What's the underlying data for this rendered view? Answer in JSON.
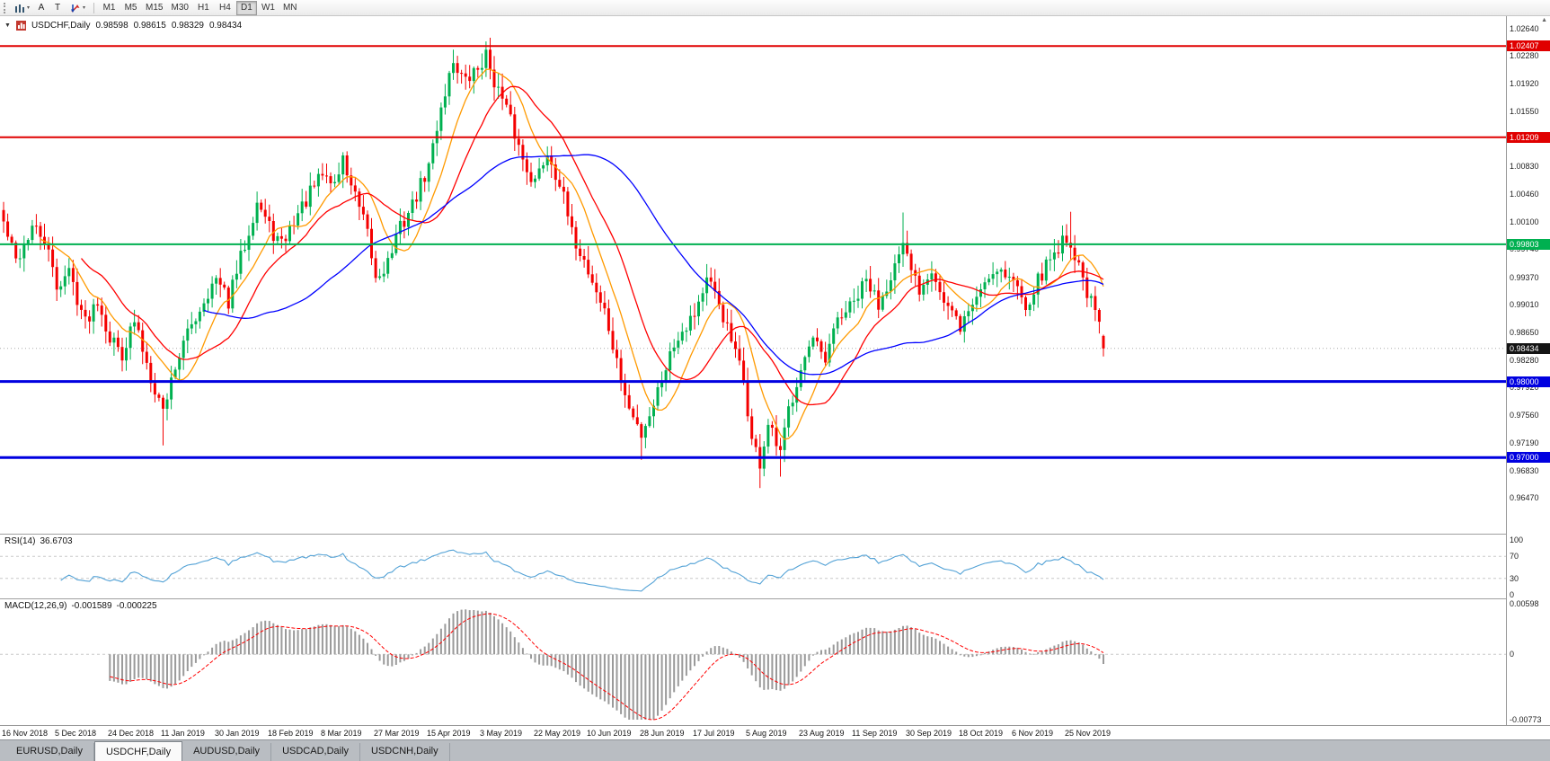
{
  "toolbar": {
    "tools": [
      {
        "name": "chart-type-icon",
        "glyph": "bars",
        "caret": true
      },
      {
        "name": "cursor-tool-icon",
        "glyph": "A",
        "caret": false
      },
      {
        "name": "text-tool-icon",
        "glyph": "T",
        "caret": false
      },
      {
        "name": "draw-arrows-icon",
        "glyph": "arrows",
        "caret": true
      }
    ],
    "timeframes": [
      "M1",
      "M5",
      "M15",
      "M30",
      "H1",
      "H4",
      "D1",
      "W1",
      "MN"
    ],
    "active_timeframe": "D1"
  },
  "chart": {
    "symbol": "USDCHF,Daily",
    "ohlc": {
      "open": "0.98598",
      "high": "0.98615",
      "low": "0.98329",
      "close": "0.98434"
    },
    "current_price_label": "0.98434"
  },
  "indicators": {
    "rsi": {
      "label": "RSI(14)",
      "value": "36.6703",
      "levels": [
        "100",
        "70",
        "30",
        "0"
      ],
      "line_color": "#53a2d6"
    },
    "macd": {
      "label": "MACD(12,26,9)",
      "main_value": "-0.001589",
      "signal_value": "-0.000225",
      "axis_labels": [
        "0.00598",
        "0",
        "-0.00773"
      ],
      "histogram_color": "#9a9a9a",
      "signal_color": "#ff0000"
    }
  },
  "chart_data": {
    "type": "candlestick",
    "symbol": "USDCHF",
    "timeframe": "Daily",
    "candle_count": 270,
    "seed": 42,
    "price_range": [
      0.96,
      1.028
    ],
    "up_color": "#00b050",
    "down_color": "#f40000",
    "price_axis_ticks": [
      "1.02640",
      "1.02280",
      "1.01920",
      "1.01550",
      "1.01190",
      "1.00830",
      "1.00460",
      "1.00100",
      "0.99740",
      "0.99370",
      "0.99010",
      "0.98650",
      "0.98280",
      "0.97920",
      "0.97560",
      "0.97190",
      "0.96830",
      "0.96470"
    ],
    "date_axis_ticks": [
      "16 Nov 2018",
      "5 Dec 2018",
      "24 Dec 2018",
      "11 Jan 2019",
      "30 Jan 2019",
      "18 Feb 2019",
      "8 Mar 2019",
      "27 Mar 2019",
      "15 Apr 2019",
      "3 May 2019",
      "22 May 2019",
      "10 Jun 2019",
      "28 Jun 2019",
      "17 Jul 2019",
      "5 Aug 2019",
      "23 Aug 2019",
      "11 Sep 2019",
      "30 Sep 2019",
      "18 Oct 2019",
      "6 Nov 2019",
      "25 Nov 2019"
    ],
    "date_label_candle_step": 13,
    "close_anchors": [
      [
        0,
        1.0008
      ],
      [
        3,
        0.9958
      ],
      [
        7,
        1.0002
      ],
      [
        10,
        0.9985
      ],
      [
        13,
        0.9925
      ],
      [
        16,
        0.9945
      ],
      [
        20,
        0.9878
      ],
      [
        23,
        0.991
      ],
      [
        26,
        0.9858
      ],
      [
        29,
        0.9838
      ],
      [
        32,
        0.9878
      ],
      [
        36,
        0.9808
      ],
      [
        39,
        0.9762
      ],
      [
        42,
        0.9822
      ],
      [
        46,
        0.9875
      ],
      [
        50,
        0.9918
      ],
      [
        52,
        0.9932
      ],
      [
        55,
        0.9905
      ],
      [
        58,
        0.9962
      ],
      [
        62,
        1.0038
      ],
      [
        65,
        1.0002
      ],
      [
        68,
        0.9978
      ],
      [
        71,
        1.0012
      ],
      [
        74,
        1.0038
      ],
      [
        78,
        1.0072
      ],
      [
        81,
        1.006
      ],
      [
        83,
        1.0092
      ],
      [
        86,
        1.0042
      ],
      [
        89,
        0.9992
      ],
      [
        91,
        0.9935
      ],
      [
        94,
        0.9958
      ],
      [
        97,
        1.0002
      ],
      [
        100,
        1.0032
      ],
      [
        104,
        1.0082
      ],
      [
        107,
        1.0162
      ],
      [
        110,
        1.0222
      ],
      [
        113,
        1.0192
      ],
      [
        116,
        1.0212
      ],
      [
        118,
        1.0228
      ],
      [
        121,
        1.0182
      ],
      [
        124,
        1.0142
      ],
      [
        127,
        1.0092
      ],
      [
        130,
        1.0062
      ],
      [
        133,
        1.0102
      ],
      [
        136,
        1.0062
      ],
      [
        139,
        0.9992
      ],
      [
        141,
        0.9972
      ],
      [
        144,
        0.9932
      ],
      [
        147,
        0.9892
      ],
      [
        150,
        0.9822
      ],
      [
        153,
        0.9762
      ],
      [
        156,
        0.9732
      ],
      [
        159,
        0.9772
      ],
      [
        162,
        0.9822
      ],
      [
        165,
        0.9862
      ],
      [
        169,
        0.9892
      ],
      [
        172,
        0.9932
      ],
      [
        175,
        0.9902
      ],
      [
        178,
        0.9852
      ],
      [
        181,
        0.9802
      ],
      [
        183,
        0.9722
      ],
      [
        185,
        0.9692
      ],
      [
        187,
        0.9742
      ],
      [
        190,
        0.9702
      ],
      [
        192,
        0.9762
      ],
      [
        195,
        0.9822
      ],
      [
        198,
        0.9852
      ],
      [
        201,
        0.9822
      ],
      [
        204,
        0.9882
      ],
      [
        208,
        0.9902
      ],
      [
        211,
        0.9932
      ],
      [
        214,
        0.9902
      ],
      [
        217,
        0.9942
      ],
      [
        220,
        0.9972
      ],
      [
        224,
        0.9922
      ],
      [
        227,
        0.9952
      ],
      [
        230,
        0.9902
      ],
      [
        234,
        0.9872
      ],
      [
        237,
        0.9902
      ],
      [
        240,
        0.9932
      ],
      [
        243,
        0.9952
      ],
      [
        247,
        0.9932
      ],
      [
        250,
        0.9902
      ],
      [
        253,
        0.9932
      ],
      [
        256,
        0.9962
      ],
      [
        260,
        0.9992
      ],
      [
        263,
        0.9952
      ],
      [
        266,
        0.9902
      ],
      [
        268,
        0.9875
      ],
      [
        269,
        0.9843
      ]
    ],
    "wick_spikes": [
      {
        "i": 39,
        "low": 0.9716
      },
      {
        "i": 110,
        "high": 1.0236
      },
      {
        "i": 117,
        "high": 1.0231
      },
      {
        "i": 156,
        "low": 0.9697
      },
      {
        "i": 185,
        "low": 0.966
      },
      {
        "i": 190,
        "low": 0.9675
      },
      {
        "i": 220,
        "high": 1.0022
      },
      {
        "i": 261,
        "high": 1.0023
      }
    ],
    "moving_averages": [
      {
        "period": 10,
        "color": "#ff9a00"
      },
      {
        "period": 20,
        "color": "#ff0000"
      },
      {
        "period": 50,
        "color": "#0000ff"
      }
    ],
    "horizontal_levels": [
      {
        "price": 1.02407,
        "label": "1.02407",
        "color": "#e00000",
        "w": 2
      },
      {
        "price": 1.01209,
        "label": "1.01209",
        "color": "#e00000",
        "w": 2
      },
      {
        "price": 0.99803,
        "label": "0.99803",
        "color": "#00b050",
        "w": 2
      },
      {
        "price": 0.98,
        "label": "0.98000",
        "color": "#0000e0",
        "w": 3
      },
      {
        "price": 0.97,
        "label": "0.97000",
        "color": "#0000e0",
        "w": 3
      }
    ],
    "current_price": 0.98434
  },
  "tabs": [
    {
      "label": "EURUSD,Daily",
      "active": false
    },
    {
      "label": "USDCHF,Daily",
      "active": true
    },
    {
      "label": "AUDUSD,Daily",
      "active": false
    },
    {
      "label": "USDCAD,Daily",
      "active": false
    },
    {
      "label": "USDCNH,Daily",
      "active": false
    }
  ]
}
